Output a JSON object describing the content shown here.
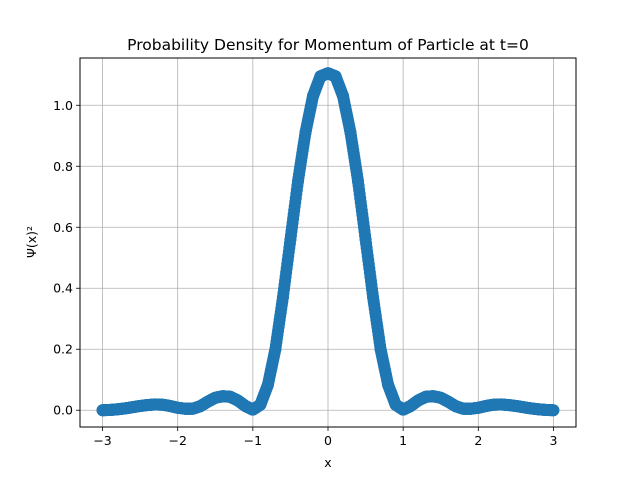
{
  "chart_data": {
    "type": "scatter",
    "title": "Probability Density for Momentum of Particle at t=0",
    "xlabel": "x",
    "ylabel": "Ψ(x)²",
    "xlim": [
      -3.3,
      3.3
    ],
    "ylim": [
      -0.055,
      1.155
    ],
    "x_ticks": [
      -3,
      -2,
      -1,
      0,
      1,
      2,
      3
    ],
    "x_tick_labels": [
      "−3",
      "−2",
      "−1",
      "0",
      "1",
      "2",
      "3"
    ],
    "y_ticks": [
      0.0,
      0.2,
      0.4,
      0.6,
      0.8,
      1.0
    ],
    "y_tick_labels": [
      "0.0",
      "0.2",
      "0.4",
      "0.6",
      "0.8",
      "1.0"
    ],
    "grid": true,
    "legend": "none",
    "series": [
      {
        "color": "#1f77b4",
        "marker": "circle",
        "x": [
          -3.0,
          -2.9,
          -2.8,
          -2.7,
          -2.6,
          -2.5,
          -2.4,
          -2.3,
          -2.2,
          -2.1,
          -2.0,
          -1.9,
          -1.8,
          -1.7,
          -1.6,
          -1.5,
          -1.4,
          -1.3,
          -1.2,
          -1.1,
          -1.0,
          -0.9,
          -0.8,
          -0.7,
          -0.6,
          -0.5,
          -0.4,
          -0.3,
          -0.2,
          -0.1,
          0.0,
          0.1,
          0.2,
          0.3,
          0.4,
          0.5,
          0.6,
          0.7,
          0.8,
          0.9,
          1.0,
          1.1,
          1.2,
          1.3,
          1.4,
          1.5,
          1.6,
          1.7,
          1.8,
          1.9,
          2.0,
          2.1,
          2.2,
          2.3,
          2.4,
          2.5,
          2.6,
          2.7,
          2.8,
          2.9,
          3.0
        ],
        "y": [
          0.0,
          0.001,
          0.003,
          0.006,
          0.01,
          0.014,
          0.017,
          0.019,
          0.018,
          0.014,
          0.008,
          0.005,
          0.005,
          0.013,
          0.028,
          0.041,
          0.046,
          0.044,
          0.032,
          0.014,
          0.002,
          0.018,
          0.083,
          0.2,
          0.37,
          0.56,
          0.75,
          0.91,
          1.03,
          1.095,
          1.105,
          1.095,
          1.03,
          0.91,
          0.75,
          0.56,
          0.37,
          0.2,
          0.083,
          0.018,
          0.002,
          0.014,
          0.032,
          0.044,
          0.046,
          0.041,
          0.028,
          0.013,
          0.005,
          0.005,
          0.008,
          0.014,
          0.018,
          0.019,
          0.017,
          0.014,
          0.01,
          0.006,
          0.003,
          0.001,
          0.0
        ]
      }
    ]
  }
}
